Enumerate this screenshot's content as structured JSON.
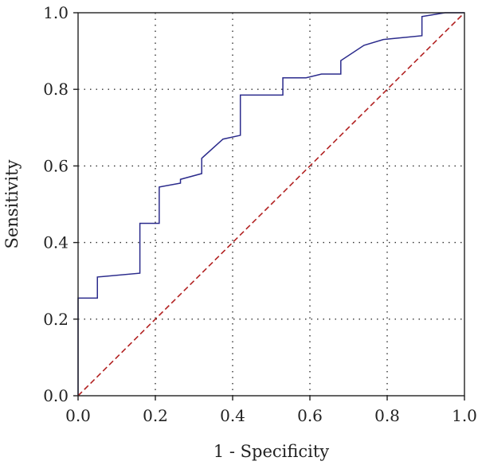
{
  "chart_data": {
    "type": "line",
    "title": "",
    "xlabel": "1 - Specificity",
    "ylabel": "Sensitivity",
    "xlim": [
      0,
      1
    ],
    "ylim": [
      0,
      1
    ],
    "xticks": [
      "0.0",
      "0.2",
      "0.4",
      "0.6",
      "0.8",
      "1.0"
    ],
    "yticks": [
      "0.0",
      "0.2",
      "0.4",
      "0.6",
      "0.8",
      "1.0"
    ],
    "grid": true,
    "legend": "none",
    "series": [
      {
        "color": "#2b2b8c",
        "style": "solid",
        "x": [
          0.0,
          0.0,
          0.05,
          0.05,
          0.16,
          0.16,
          0.21,
          0.21,
          0.265,
          0.265,
          0.32,
          0.32,
          0.375,
          0.42,
          0.42,
          0.53,
          0.53,
          0.59,
          0.63,
          0.68,
          0.68,
          0.74,
          0.79,
          0.89,
          0.89,
          0.95,
          1.0
        ],
        "y": [
          0.0,
          0.255,
          0.255,
          0.31,
          0.32,
          0.45,
          0.45,
          0.545,
          0.555,
          0.565,
          0.58,
          0.62,
          0.67,
          0.68,
          0.785,
          0.785,
          0.83,
          0.83,
          0.84,
          0.84,
          0.875,
          0.915,
          0.93,
          0.94,
          0.99,
          1.0,
          1.0
        ]
      },
      {
        "color": "#b22222",
        "style": "dashed",
        "x": [
          0.0,
          1.0
        ],
        "y": [
          0.0,
          1.0
        ]
      }
    ]
  }
}
